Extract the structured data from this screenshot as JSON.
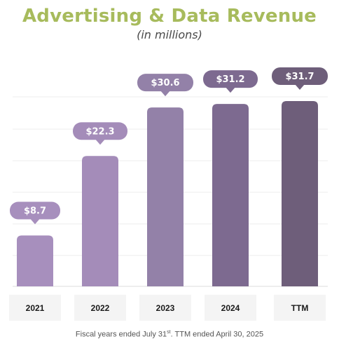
{
  "title": "Advertising & Data Revenue",
  "subtitle": "(in millions)",
  "footnote": {
    "prefix": "Fiscal years  ended July 31",
    "sup": "st",
    "suffix": ".  TTM ended April 30, 2025"
  },
  "chart_data": {
    "type": "bar",
    "categories": [
      "2021",
      "2022",
      "2023",
      "2024",
      "TTM"
    ],
    "values": [
      8.7,
      22.3,
      30.6,
      31.2,
      31.7
    ],
    "data_labels": [
      "$8.7",
      "$22.3",
      "$30.6",
      "$31.2",
      "$31.7"
    ],
    "ylim": [
      0,
      31.7
    ],
    "grid": true,
    "colors": [
      "#a78fbd",
      "#a48cb9",
      "#9381a8",
      "#7d6a90",
      "#6e5e7a"
    ]
  }
}
